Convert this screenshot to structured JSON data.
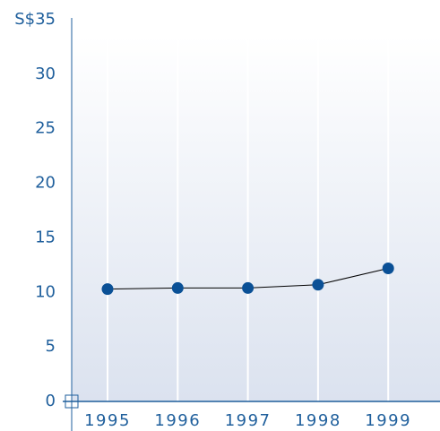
{
  "chart_data": {
    "type": "line",
    "categories": [
      "1995",
      "1996",
      "1997",
      "1998",
      "1999"
    ],
    "series": [
      {
        "name": null,
        "color": "#0a5096",
        "values": [
          10.3,
          10.4,
          10.4,
          10.7,
          12.2
        ]
      }
    ],
    "ylim": [
      0,
      35
    ],
    "yticks": [
      0,
      5,
      10,
      15,
      20,
      25,
      30,
      {
        "value": 35,
        "label": "S$35"
      }
    ],
    "grid": true
  }
}
